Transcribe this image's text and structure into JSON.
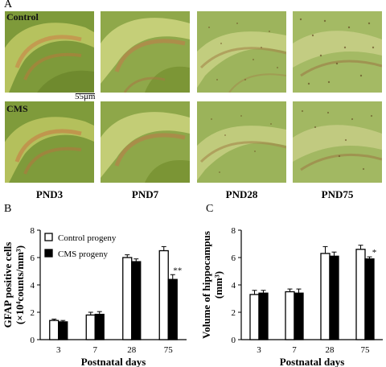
{
  "panel_a": {
    "letter": "A",
    "row_labels": [
      "Control",
      "CMS"
    ],
    "columns": [
      "PND3",
      "PND7",
      "PND28",
      "PND75"
    ],
    "scale_bar": "55μm"
  },
  "panel_b": {
    "letter": "B"
  },
  "panel_c": {
    "letter": "C"
  },
  "chart_data": [
    {
      "type": "bar",
      "ylabel_line1": "GFAP positive cells",
      "ylabel_line2": "(×10⁴counts/mm³)",
      "xlabel": "Postnatal days",
      "categories": [
        "3",
        "7",
        "28",
        "75"
      ],
      "ylim": [
        0,
        8
      ],
      "yticks": [
        "0",
        "2",
        "4",
        "6",
        "8"
      ],
      "series": [
        {
          "name": "Control progeny",
          "fill": "#ffffff",
          "values": [
            1.4,
            1.8,
            6.0,
            6.5
          ],
          "errors": [
            0.1,
            0.2,
            0.2,
            0.3
          ]
        },
        {
          "name": "CMS progeny",
          "fill": "#000000",
          "values": [
            1.3,
            1.85,
            5.7,
            4.4
          ],
          "errors": [
            0.1,
            0.2,
            0.2,
            0.35
          ]
        }
      ],
      "annotations": [
        {
          "category": "75",
          "series": 1,
          "text": "**"
        }
      ],
      "legend": "top-left"
    },
    {
      "type": "bar",
      "ylabel_line1": "Volume of hippocampus",
      "ylabel_line2": "(mm³)",
      "xlabel": "Postnatal days",
      "categories": [
        "3",
        "7",
        "28",
        "75"
      ],
      "ylim": [
        0,
        8
      ],
      "yticks": [
        "0",
        "2",
        "4",
        "6",
        "8"
      ],
      "series": [
        {
          "name": "Control progeny",
          "fill": "#ffffff",
          "values": [
            3.3,
            3.5,
            6.3,
            6.6
          ],
          "errors": [
            0.3,
            0.2,
            0.5,
            0.3
          ]
        },
        {
          "name": "CMS progeny",
          "fill": "#000000",
          "values": [
            3.4,
            3.4,
            6.1,
            5.9
          ],
          "errors": [
            0.2,
            0.3,
            0.3,
            0.15
          ]
        }
      ],
      "annotations": [
        {
          "category": "75",
          "series": 1,
          "text": "*"
        }
      ]
    }
  ]
}
